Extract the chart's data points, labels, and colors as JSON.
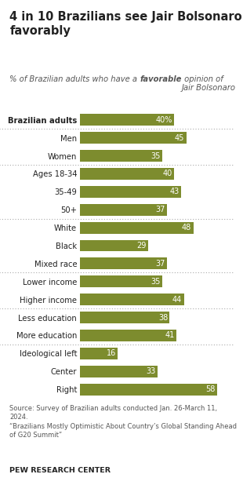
{
  "title": "4 in 10 Brazilians see Jair Bolsonaro\nfavorably",
  "subtitle_regular": "% of Brazilian adults who have a ",
  "subtitle_bold": "favorable",
  "subtitle_end": " opinion of\nJair Bolsonaro",
  "categories": [
    "Brazilian adults",
    "Men",
    "Women",
    "Ages 18-34",
    "35-49",
    "50+",
    "White",
    "Black",
    "Mixed race",
    "Lower income",
    "Higher income",
    "Less education",
    "More education",
    "Ideological left",
    "Center",
    "Right"
  ],
  "values": [
    40,
    45,
    35,
    40,
    43,
    37,
    48,
    29,
    37,
    35,
    44,
    38,
    41,
    16,
    33,
    58
  ],
  "labels": [
    "40%",
    "45",
    "35",
    "40",
    "43",
    "37",
    "48",
    "29",
    "37",
    "35",
    "44",
    "38",
    "41",
    "16",
    "33",
    "58"
  ],
  "bar_color": "#7d8c2e",
  "bg_color": "#ffffff",
  "text_color": "#222222",
  "source_text": "Source: Survey of Brazilian adults conducted Jan. 26-March 11,\n2024.\n“Brazilians Mostly Optimistic About Country’s Global Standing Ahead\nof G20 Summit”",
  "footer_text": "PEW RESEARCH CENTER",
  "separator_after": [
    0,
    2,
    5,
    8,
    10,
    12
  ],
  "xlim": [
    0,
    65
  ],
  "bar_height": 0.65
}
